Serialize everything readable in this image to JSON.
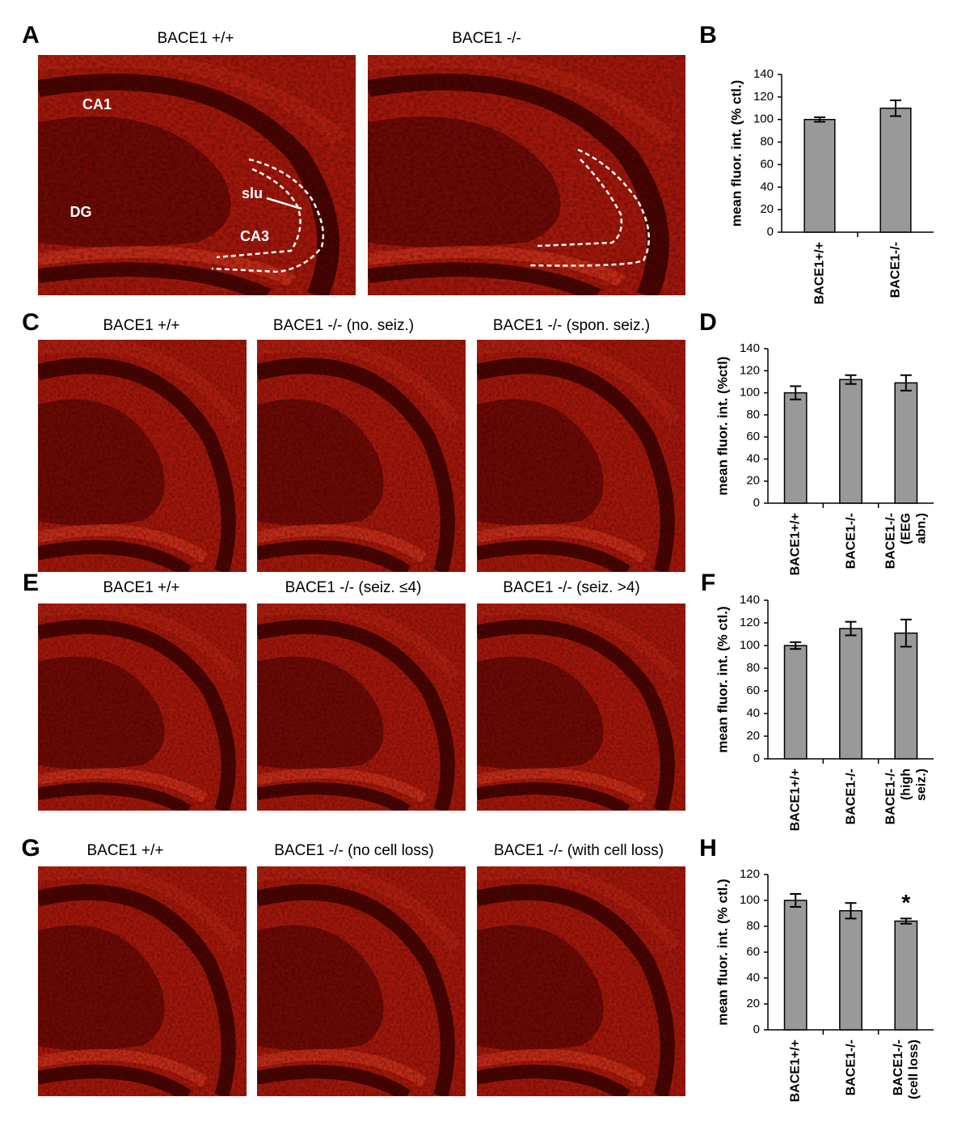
{
  "panels": [
    {
      "letter": "A",
      "images": [
        {
          "title": "BACE1 +/+",
          "labels": [
            "CA1",
            "DG",
            "slu",
            "CA3"
          ]
        },
        {
          "title": "BACE1 -/-"
        }
      ]
    },
    {
      "letter": "C",
      "images": [
        {
          "title": "BACE1 +/+"
        },
        {
          "title": "BACE1 -/- (no. seiz.)"
        },
        {
          "title": "BACE1 -/- (spon. seiz.)"
        }
      ]
    },
    {
      "letter": "E",
      "images": [
        {
          "title": "BACE1 +/+"
        },
        {
          "title": "BACE1 -/- (seiz. ≤4)"
        },
        {
          "title": "BACE1 -/- (seiz. >4)"
        }
      ]
    },
    {
      "letter": "G",
      "images": [
        {
          "title": "BACE1 +/+"
        },
        {
          "title": "BACE1 -/- (no cell loss)"
        },
        {
          "title": "BACE1 -/- (with cell loss)"
        }
      ]
    }
  ],
  "chart_data": [
    {
      "type": "bar",
      "panel": "B",
      "ylabel": "mean fluor. int. (% ctl.)",
      "categories": [
        "BACE1+/+",
        "BACE1-/-"
      ],
      "values": [
        100,
        110
      ],
      "errors": [
        2,
        7
      ],
      "color": "#999999",
      "ylim": [
        0,
        140
      ],
      "yticks": [
        0,
        20,
        40,
        60,
        80,
        100,
        120,
        140
      ]
    },
    {
      "type": "bar",
      "panel": "D",
      "ylabel": "mean fluor. int. (%ctl)",
      "categories": [
        "BACE1+/+",
        "BACE1-/-",
        "BACE1-/-\n(EEG abn.)"
      ],
      "values": [
        100,
        112,
        109
      ],
      "errors": [
        6,
        4,
        7
      ],
      "color": "#999999",
      "ylim": [
        0,
        140
      ],
      "yticks": [
        0,
        20,
        40,
        60,
        80,
        100,
        120,
        140
      ]
    },
    {
      "type": "bar",
      "panel": "F",
      "ylabel": "mean fluor. int. (% ctl.)",
      "categories": [
        "BACE1+/+",
        "BACE1-/-",
        "BACE1-/-\n(high seiz.)"
      ],
      "values": [
        100,
        115,
        111
      ],
      "errors": [
        3,
        6,
        12
      ],
      "color": "#999999",
      "ylim": [
        0,
        140
      ],
      "yticks": [
        0,
        20,
        40,
        60,
        80,
        100,
        120,
        140
      ]
    },
    {
      "type": "bar",
      "panel": "H",
      "ylabel": "mean fluor. int. (% ctl.)",
      "categories": [
        "BACE1+/+",
        "BACE1-/-",
        "BACE1-/-\n(cell loss)"
      ],
      "values": [
        100,
        92,
        84
      ],
      "errors": [
        5,
        6,
        2
      ],
      "color": "#999999",
      "ylim": [
        0,
        120
      ],
      "yticks": [
        0,
        20,
        40,
        60,
        80,
        100,
        120
      ],
      "annotation": "*"
    }
  ]
}
